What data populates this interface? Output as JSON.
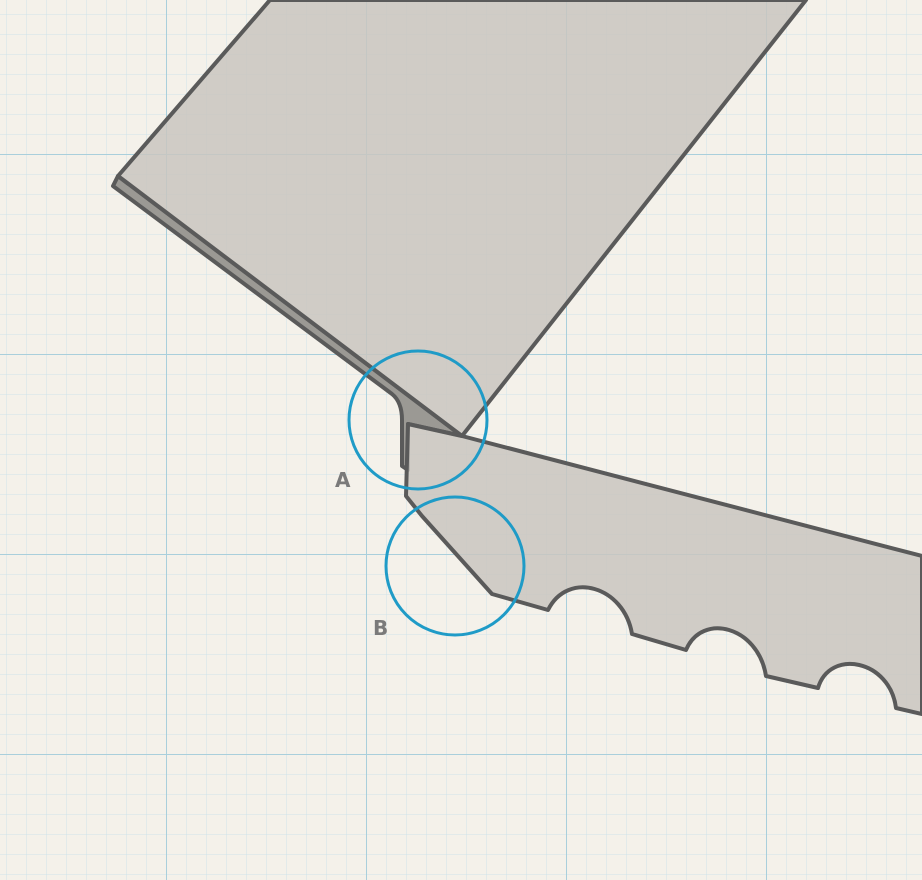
{
  "colors": {
    "paper": "#f4f1ea",
    "grid_minor": "#cfe3ea",
    "grid_major": "#a9cfdc",
    "blade_fill": "#c9c6c0",
    "blade_stroke": "#5a5a5a",
    "circle_stroke": "#1f9bc7",
    "label": "#7a7a7a"
  },
  "callouts": [
    {
      "id": "A",
      "label": "A"
    },
    {
      "id": "B",
      "label": "B"
    }
  ]
}
